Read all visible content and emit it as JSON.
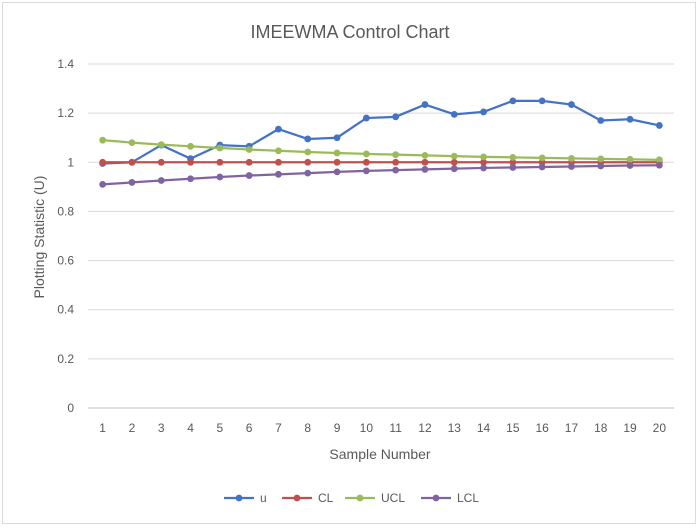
{
  "chart_data": {
    "type": "line",
    "title": "IMEEWMA Control Chart",
    "xlabel": "Sample Number",
    "ylabel": "Plotting Statistic  (U)",
    "x": [
      1,
      2,
      3,
      4,
      5,
      6,
      7,
      8,
      9,
      10,
      11,
      12,
      13,
      14,
      15,
      16,
      17,
      18,
      19,
      20
    ],
    "ylim": [
      0,
      1.4
    ],
    "yticks": [
      "0",
      "0.2",
      "0.4",
      "0.6",
      "0.8",
      "1",
      "1.2",
      "1.4"
    ],
    "ytick_values": [
      0,
      0.2,
      0.4,
      0.6,
      0.8,
      1.0,
      1.2,
      1.4
    ],
    "grid": true,
    "legend_position": "bottom",
    "series": [
      {
        "name": "u",
        "color": "#4472C4",
        "values": [
          0.995,
          1.0,
          1.07,
          1.015,
          1.07,
          1.065,
          1.135,
          1.095,
          1.1,
          1.18,
          1.185,
          1.235,
          1.195,
          1.205,
          1.25,
          1.25,
          1.235,
          1.17,
          1.175,
          1.15
        ]
      },
      {
        "name": "CL",
        "color": "#C0504D",
        "values": [
          1,
          1,
          1,
          1,
          1,
          1,
          1,
          1,
          1,
          1,
          1,
          1,
          1,
          1,
          1,
          1,
          1,
          1,
          1,
          1
        ]
      },
      {
        "name": "UCL",
        "color": "#9BBB59",
        "values": [
          1.09,
          1.08,
          1.072,
          1.065,
          1.058,
          1.052,
          1.047,
          1.042,
          1.038,
          1.034,
          1.031,
          1.028,
          1.025,
          1.022,
          1.02,
          1.018,
          1.016,
          1.014,
          1.012,
          1.01
        ]
      },
      {
        "name": "LCL",
        "color": "#8064A2",
        "values": [
          0.91,
          0.918,
          0.926,
          0.933,
          0.94,
          0.946,
          0.951,
          0.956,
          0.961,
          0.965,
          0.968,
          0.971,
          0.974,
          0.977,
          0.979,
          0.981,
          0.983,
          0.985,
          0.987,
          0.988
        ]
      }
    ]
  }
}
